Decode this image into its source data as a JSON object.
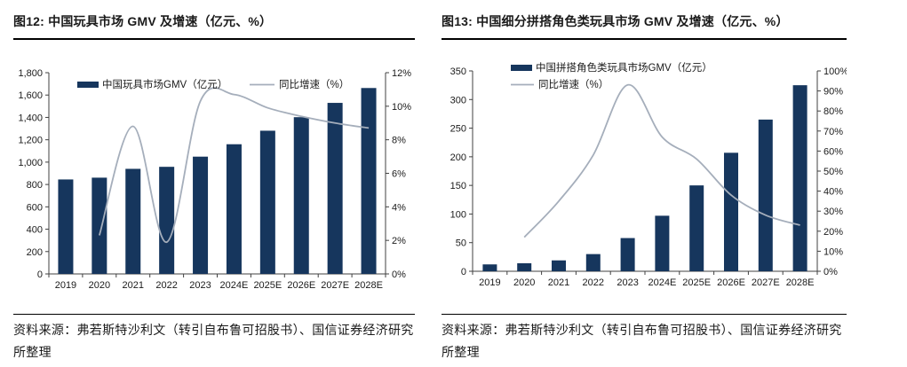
{
  "colors": {
    "bar": "#16365D",
    "line": "#A5AEBB",
    "axis": "#404040",
    "text": "#1a1a1a",
    "rule": "#000000"
  },
  "figures": [
    {
      "title": "图12: 中国玩具市场 GMV 及增速（亿元、%）",
      "source": "资料来源：弗若斯特沙利文（转引自布鲁可招股书）、国信证券经济研究所整理"
    },
    {
      "title": "图13: 中国细分拼搭角色类玩具市场 GMV 及增速（亿元、%）",
      "source": "资料来源：弗若斯特沙利文（转引自布鲁可招股书）、国信证券经济研究所整理"
    }
  ],
  "chart_data": [
    {
      "type": "bar-line-combo",
      "title": "图12: 中国玩具市场 GMV 及增速（亿元、%）",
      "categories": [
        "2019",
        "2020",
        "2021",
        "2022",
        "2023",
        "2024E",
        "2025E",
        "2026E",
        "2027E",
        "2028E"
      ],
      "series": [
        {
          "name": "中国玩具市场GMV（亿元）",
          "type": "bar",
          "axis": "left",
          "color": "#16365D",
          "values": [
            845,
            861,
            940,
            958,
            1049,
            1160,
            1281,
            1402,
            1530,
            1663
          ]
        },
        {
          "name": "同比增速（%）",
          "type": "line",
          "axis": "right",
          "color": "#A5AEBB",
          "values": [
            null,
            2.3,
            8.8,
            1.9,
            10.3,
            10.7,
            9.9,
            9.4,
            9.0,
            8.7
          ]
        }
      ],
      "left_axis": {
        "min": 0,
        "max": 1800,
        "tick_labels": [
          "0",
          "200",
          "400",
          "600",
          "800",
          "1,000",
          "1,200",
          "1,400",
          "1,600",
          "1,800"
        ]
      },
      "right_axis": {
        "min": 0,
        "max": 12,
        "tick_labels": [
          "0%",
          "2%",
          "4%",
          "6%",
          "8%",
          "10%",
          "12%"
        ]
      },
      "grid": false,
      "legend_position": "top-row"
    },
    {
      "type": "bar-line-combo",
      "title": "图13: 中国细分拼搭角色类玩具市场 GMV 及增速（亿元、%）",
      "categories": [
        "2019",
        "2020",
        "2021",
        "2022",
        "2023",
        "2024E",
        "2025E",
        "2026E",
        "2027E",
        "2028E"
      ],
      "series": [
        {
          "name": "中国拼搭角色类玩具市场GMV（亿元）",
          "type": "bar",
          "axis": "left",
          "color": "#16365D",
          "values": [
            12,
            14,
            19,
            30,
            58,
            97,
            150,
            207,
            265,
            325
          ]
        },
        {
          "name": "同比增速（%）",
          "type": "line",
          "axis": "right",
          "color": "#A5AEBB",
          "values": [
            null,
            17,
            35,
            58,
            93,
            67,
            56,
            38,
            28,
            23
          ]
        }
      ],
      "left_axis": {
        "min": 0,
        "max": 350,
        "tick_labels": [
          "0",
          "50",
          "100",
          "150",
          "200",
          "250",
          "300",
          "350"
        ]
      },
      "right_axis": {
        "min": 0,
        "max": 100,
        "tick_labels": [
          "0%",
          "10%",
          "20%",
          "30%",
          "40%",
          "50%",
          "60%",
          "70%",
          "80%",
          "90%",
          "100%"
        ]
      },
      "grid": false,
      "legend_position": "top-left-column"
    }
  ]
}
